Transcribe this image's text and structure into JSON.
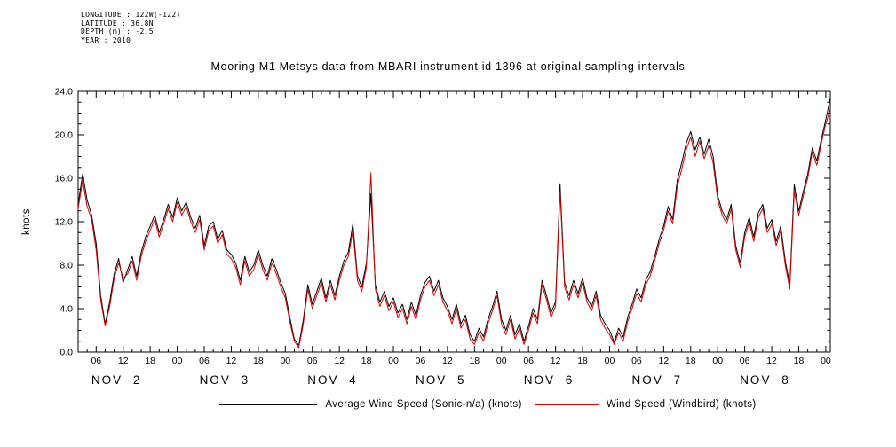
{
  "meta": {
    "longitude": "LONGITUDE : 122W(-122)",
    "latitude": "LATITUDE : 36.8N",
    "depth": "DEPTH (m) : -2.5",
    "year": "YEAR : 2010"
  },
  "chart_data": {
    "type": "line",
    "title": "Mooring M1 Metsys data from MBARI instrument id 1396 at original sampling intervals",
    "ylabel": "knots",
    "xlabel": "",
    "x_description": "hours since 2010-11-02 00:00, tick labels are hour of day",
    "ylim": [
      0,
      24
    ],
    "ytick_step": 4,
    "ytick_minor": 1,
    "ytick_labels": [
      "0.0",
      "4.0",
      "8.0",
      "12.0",
      "16.0",
      "20.0",
      "24.0"
    ],
    "x_start_hour": 2,
    "x_end_hour": 169,
    "x_step_hours": 1,
    "x_major_tick_step_hours": 6,
    "x_minor_tick_step_hours": 2,
    "x_tick_label_cycle": [
      "06",
      "12",
      "18",
      "00"
    ],
    "day_labels": [
      "NOV 2",
      "NOV 3",
      "NOV 4",
      "NOV 5",
      "NOV 6",
      "NOV 7",
      "NOV 8"
    ],
    "grid": false,
    "legend_position": "bottom",
    "frame_color": "#000000",
    "background": "#ffffff",
    "series": [
      {
        "id": "sonic",
        "name": "Average Wind Speed (Sonic-n/a) (knots)",
        "color": "#000000",
        "values": [
          13.6,
          16.4,
          14.0,
          12.6,
          10.0,
          5.2,
          2.6,
          4.6,
          7.2,
          8.6,
          6.4,
          7.6,
          8.8,
          7.0,
          9.2,
          10.6,
          11.6,
          12.6,
          11.0,
          12.2,
          13.6,
          12.4,
          14.2,
          13.0,
          13.8,
          12.4,
          11.4,
          12.6,
          9.8,
          11.6,
          12.0,
          10.4,
          11.2,
          9.4,
          9.0,
          8.2,
          6.6,
          8.8,
          7.4,
          8.0,
          9.4,
          8.0,
          7.0,
          8.6,
          7.6,
          6.4,
          5.4,
          3.2,
          1.2,
          0.6,
          3.0,
          6.2,
          4.4,
          5.6,
          6.8,
          5.0,
          6.6,
          5.2,
          7.0,
          8.4,
          9.2,
          11.8,
          7.0,
          6.0,
          8.2,
          14.6,
          6.2,
          4.6,
          5.6,
          4.2,
          5.0,
          3.6,
          4.4,
          3.0,
          4.6,
          3.4,
          5.2,
          6.4,
          7.0,
          5.6,
          6.6,
          5.0,
          4.2,
          3.0,
          4.4,
          2.6,
          3.4,
          1.6,
          1.0,
          2.2,
          1.4,
          3.0,
          4.2,
          5.6,
          3.0,
          2.0,
          3.4,
          1.6,
          2.6,
          1.0,
          2.4,
          4.0,
          3.0,
          6.6,
          5.2,
          3.6,
          4.6,
          15.5,
          6.4,
          5.2,
          6.6,
          5.4,
          6.8,
          5.0,
          4.2,
          5.6,
          3.4,
          2.6,
          2.0,
          0.9,
          2.2,
          1.4,
          3.2,
          4.4,
          5.8,
          5.0,
          6.6,
          7.4,
          8.8,
          10.4,
          11.6,
          13.4,
          12.2,
          15.8,
          17.4,
          19.2,
          20.3,
          18.6,
          19.8,
          18.2,
          19.6,
          18.0,
          14.4,
          13.0,
          12.2,
          13.6,
          9.8,
          8.2,
          11.0,
          12.4,
          10.6,
          12.8,
          13.6,
          11.4,
          12.2,
          10.2,
          11.6,
          8.4,
          6.2,
          15.4,
          13.0,
          14.8,
          16.4,
          18.8,
          17.6,
          19.6,
          21.4,
          23.4
        ]
      },
      {
        "id": "windbird",
        "name": "Wind Speed (Windbird) (knots)",
        "color": "#dd0000",
        "values": [
          13.2,
          15.8,
          13.4,
          12.2,
          9.4,
          4.8,
          2.4,
          4.2,
          6.8,
          8.2,
          6.8,
          7.2,
          8.4,
          6.6,
          8.8,
          10.2,
          11.2,
          12.2,
          10.6,
          11.8,
          13.2,
          12.0,
          13.8,
          12.6,
          13.4,
          12.0,
          11.0,
          12.2,
          9.4,
          11.2,
          11.6,
          10.0,
          10.8,
          9.0,
          8.6,
          7.8,
          6.2,
          8.4,
          7.0,
          7.6,
          9.0,
          7.6,
          6.6,
          8.2,
          7.2,
          6.0,
          5.0,
          2.8,
          1.0,
          0.4,
          2.6,
          5.8,
          4.0,
          5.2,
          6.4,
          4.6,
          6.2,
          4.8,
          6.6,
          8.0,
          8.8,
          11.2,
          6.6,
          5.6,
          7.8,
          16.5,
          5.8,
          4.2,
          5.2,
          3.8,
          4.6,
          3.2,
          4.0,
          2.6,
          4.2,
          3.0,
          4.8,
          6.0,
          6.6,
          5.2,
          6.2,
          4.6,
          3.8,
          2.6,
          4.0,
          2.2,
          3.0,
          1.2,
          0.7,
          1.8,
          1.0,
          2.6,
          3.8,
          5.2,
          2.6,
          1.6,
          3.0,
          1.2,
          2.2,
          0.7,
          2.0,
          3.6,
          2.6,
          6.2,
          4.8,
          3.2,
          4.2,
          14.8,
          6.0,
          4.8,
          6.2,
          5.0,
          6.4,
          4.6,
          3.8,
          5.2,
          3.0,
          2.2,
          1.6,
          0.7,
          1.8,
          1.0,
          2.8,
          4.0,
          5.4,
          4.6,
          6.2,
          7.0,
          8.4,
          10.0,
          11.2,
          13.0,
          11.8,
          15.2,
          16.8,
          18.6,
          19.8,
          18.0,
          19.4,
          17.8,
          19.0,
          17.4,
          14.0,
          12.6,
          11.8,
          13.2,
          9.4,
          7.8,
          10.6,
          12.0,
          10.2,
          12.4,
          13.2,
          11.0,
          11.8,
          9.8,
          11.2,
          8.0,
          5.8,
          14.8,
          12.6,
          14.4,
          16.0,
          18.4,
          17.2,
          19.2,
          21.0,
          22.4
        ]
      }
    ]
  },
  "legend": {
    "items": [
      {
        "label": "Average Wind Speed (Sonic-n/a) (knots)",
        "color": "#000000"
      },
      {
        "label": "Wind Speed (Windbird) (knots)",
        "color": "#dd0000"
      }
    ]
  }
}
